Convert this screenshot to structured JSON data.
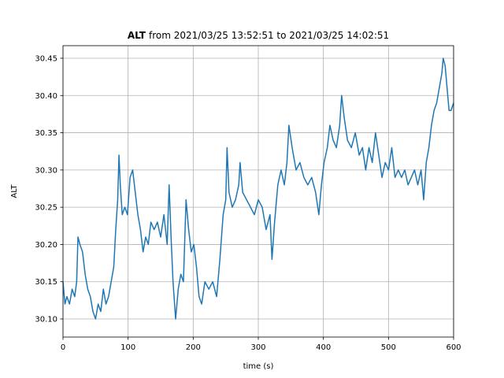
{
  "chart_data": {
    "type": "line",
    "title_bold": "ALT",
    "title": "from 2021/03/25 13:52:51 to 2021/03/25 14:02:51",
    "xlabel": "time (s)",
    "ylabel": "ALT",
    "grid": true,
    "xlim": [
      0,
      600
    ],
    "xticks": [
      0,
      100,
      200,
      300,
      400,
      500,
      600
    ],
    "ylim": [
      30.0757,
      30.4669
    ],
    "yticks": [
      {
        "value": 30.1,
        "label": "30.10"
      },
      {
        "value": 30.15,
        "label": "30.15"
      },
      {
        "value": 30.2,
        "label": "30.20"
      },
      {
        "value": 30.25,
        "label": "30.25"
      },
      {
        "value": 30.3,
        "label": "30.30"
      },
      {
        "value": 30.35,
        "label": "30.35"
      },
      {
        "value": 30.4,
        "label": "30.40"
      },
      {
        "value": 30.45,
        "label": "30.45"
      }
    ],
    "x": [
      0,
      3,
      6,
      10,
      14,
      18,
      21,
      23,
      26,
      30,
      34,
      38,
      42,
      46,
      50,
      54,
      58,
      62,
      66,
      70,
      74,
      78,
      81,
      84,
      86,
      88,
      91,
      95,
      99,
      103,
      107,
      111,
      115,
      119,
      123,
      127,
      131,
      135,
      140,
      145,
      150,
      155,
      160,
      163,
      166,
      169,
      173,
      177,
      181,
      185,
      189,
      193,
      197,
      201,
      205,
      209,
      213,
      218,
      224,
      230,
      236,
      241,
      246,
      250,
      252,
      255,
      260,
      265,
      270,
      272,
      276,
      282,
      288,
      294,
      300,
      306,
      312,
      318,
      321,
      325,
      330,
      335,
      340,
      344,
      347,
      352,
      358,
      364,
      370,
      376,
      382,
      388,
      393,
      397,
      401,
      406,
      410,
      415,
      420,
      425,
      428,
      432,
      437,
      443,
      449,
      455,
      460,
      465,
      470,
      475,
      480,
      485,
      490,
      495,
      500,
      505,
      510,
      515,
      520,
      525,
      530,
      535,
      540,
      545,
      550,
      554,
      558,
      562,
      566,
      570,
      574,
      578,
      582,
      584,
      587,
      590,
      593,
      596,
      600
    ],
    "series": [
      {
        "color": "#1f77b4",
        "values": [
          30.15,
          30.12,
          30.13,
          30.12,
          30.14,
          30.13,
          30.15,
          30.21,
          30.2,
          30.19,
          30.16,
          30.14,
          30.13,
          30.11,
          30.1,
          30.12,
          30.11,
          30.14,
          30.12,
          30.13,
          30.15,
          30.17,
          30.22,
          30.26,
          30.32,
          30.28,
          30.24,
          30.25,
          30.24,
          30.29,
          30.3,
          30.27,
          30.24,
          30.22,
          30.19,
          30.21,
          30.2,
          30.23,
          30.22,
          30.23,
          30.21,
          30.24,
          30.2,
          30.28,
          30.21,
          30.15,
          30.1,
          30.14,
          30.16,
          30.15,
          30.26,
          30.22,
          30.19,
          30.2,
          30.17,
          30.13,
          30.12,
          30.15,
          30.14,
          30.15,
          30.13,
          30.18,
          30.24,
          30.26,
          30.33,
          30.27,
          30.25,
          30.26,
          30.28,
          30.31,
          30.27,
          30.26,
          30.25,
          30.24,
          30.26,
          30.25,
          30.22,
          30.24,
          30.18,
          30.23,
          30.28,
          30.3,
          30.28,
          30.31,
          30.36,
          30.33,
          30.3,
          30.31,
          30.29,
          30.28,
          30.29,
          30.27,
          30.24,
          30.28,
          30.31,
          30.33,
          30.36,
          30.34,
          30.33,
          30.36,
          30.4,
          30.37,
          30.34,
          30.33,
          30.35,
          30.32,
          30.33,
          30.3,
          30.33,
          30.31,
          30.35,
          30.32,
          30.29,
          30.31,
          30.3,
          30.33,
          30.29,
          30.3,
          30.29,
          30.3,
          30.28,
          30.29,
          30.3,
          30.28,
          30.3,
          30.26,
          30.31,
          30.33,
          30.36,
          30.38,
          30.39,
          30.41,
          30.43,
          30.45,
          30.44,
          30.41,
          30.38,
          30.38,
          30.39
        ]
      }
    ]
  }
}
